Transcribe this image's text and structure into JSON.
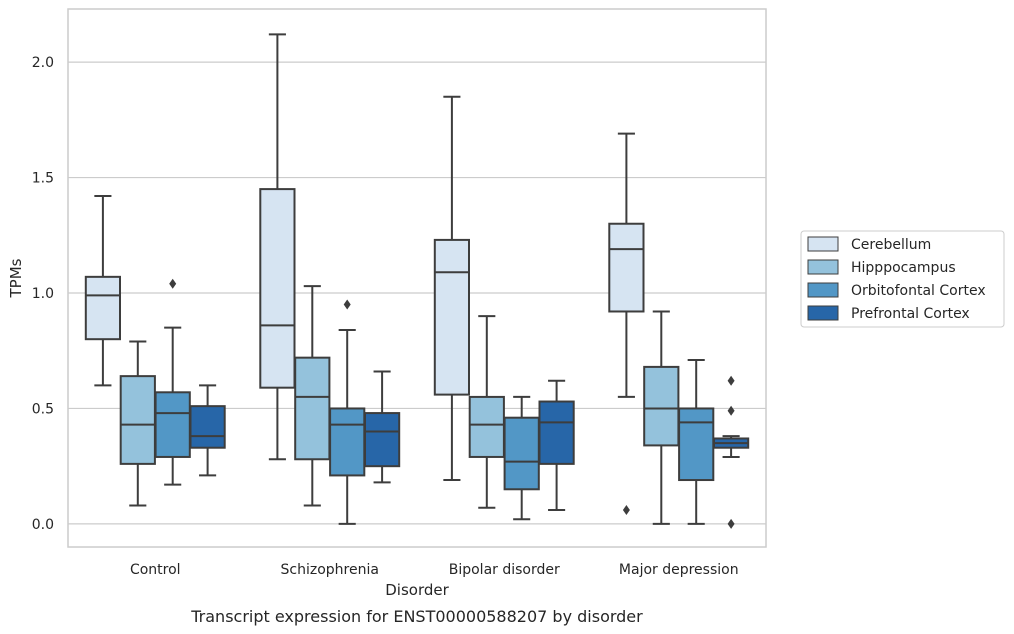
{
  "chart_data": {
    "type": "boxplot",
    "title": "",
    "caption": "Transcript expression for ENST00000588207 by disorder",
    "xlabel": "Disorder",
    "ylabel": "TPMs",
    "ylim": [
      -0.1,
      2.23
    ],
    "yticks": [
      0.0,
      0.5,
      1.0,
      1.5,
      2.0
    ],
    "ytick_labels": [
      "0.0",
      "0.5",
      "1.0",
      "1.5",
      "2.0"
    ],
    "grid": "horizontal",
    "legend_position": "right",
    "categories": [
      "Control",
      "Schizophrenia",
      "Bipolar disorder",
      "Major depression"
    ],
    "series": [
      {
        "name": "Cerebellum",
        "color": "#d6e4f2",
        "boxes": [
          {
            "whisker_low": 0.6,
            "q1": 0.8,
            "median": 0.99,
            "q3": 1.07,
            "whisker_high": 1.42,
            "outliers": []
          },
          {
            "whisker_low": 0.28,
            "q1": 0.59,
            "median": 0.86,
            "q3": 1.45,
            "whisker_high": 2.12,
            "outliers": []
          },
          {
            "whisker_low": 0.19,
            "q1": 0.56,
            "median": 1.09,
            "q3": 1.23,
            "whisker_high": 1.85,
            "outliers": []
          },
          {
            "whisker_low": 0.55,
            "q1": 0.92,
            "median": 1.19,
            "q3": 1.3,
            "whisker_high": 1.69,
            "outliers": [
              0.06
            ]
          }
        ]
      },
      {
        "name": "Hipppocampus",
        "color": "#94c2dc",
        "boxes": [
          {
            "whisker_low": 0.08,
            "q1": 0.26,
            "median": 0.43,
            "q3": 0.64,
            "whisker_high": 0.79,
            "outliers": []
          },
          {
            "whisker_low": 0.08,
            "q1": 0.28,
            "median": 0.55,
            "q3": 0.72,
            "whisker_high": 1.03,
            "outliers": []
          },
          {
            "whisker_low": 0.07,
            "q1": 0.29,
            "median": 0.43,
            "q3": 0.55,
            "whisker_high": 0.9,
            "outliers": []
          },
          {
            "whisker_low": 0.0,
            "q1": 0.34,
            "median": 0.5,
            "q3": 0.68,
            "whisker_high": 0.92,
            "outliers": []
          }
        ]
      },
      {
        "name": "Orbitofontal Cortex",
        "color": "#5297c6",
        "boxes": [
          {
            "whisker_low": 0.17,
            "q1": 0.29,
            "median": 0.48,
            "q3": 0.57,
            "whisker_high": 0.85,
            "outliers": [
              1.04
            ]
          },
          {
            "whisker_low": 0.0,
            "q1": 0.21,
            "median": 0.43,
            "q3": 0.5,
            "whisker_high": 0.84,
            "outliers": [
              0.95
            ]
          },
          {
            "whisker_low": 0.02,
            "q1": 0.15,
            "median": 0.27,
            "q3": 0.46,
            "whisker_high": 0.55,
            "outliers": []
          },
          {
            "whisker_low": 0.0,
            "q1": 0.19,
            "median": 0.44,
            "q3": 0.5,
            "whisker_high": 0.71,
            "outliers": []
          }
        ]
      },
      {
        "name": "Prefrontal Cortex",
        "color": "#2766a8",
        "boxes": [
          {
            "whisker_low": 0.21,
            "q1": 0.33,
            "median": 0.38,
            "q3": 0.51,
            "whisker_high": 0.6,
            "outliers": []
          },
          {
            "whisker_low": 0.18,
            "q1": 0.25,
            "median": 0.4,
            "q3": 0.48,
            "whisker_high": 0.66,
            "outliers": []
          },
          {
            "whisker_low": 0.06,
            "q1": 0.26,
            "median": 0.44,
            "q3": 0.53,
            "whisker_high": 0.62,
            "outliers": []
          },
          {
            "whisker_low": 0.29,
            "q1": 0.33,
            "median": 0.35,
            "q3": 0.37,
            "whisker_high": 0.38,
            "outliers": [
              0.62,
              0.49,
              0.0
            ]
          }
        ]
      }
    ]
  }
}
